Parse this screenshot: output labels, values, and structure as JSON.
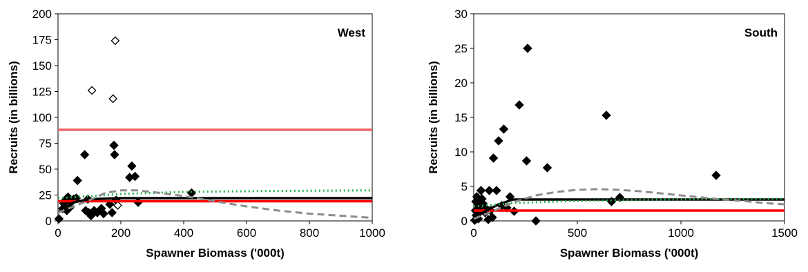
{
  "chart_data": [
    {
      "type": "scatter",
      "panel_label": "West",
      "xlabel": "Spawner Biomass ('000t)",
      "ylabel": "Recruits (in billions)",
      "xlim": [
        0,
        1000
      ],
      "ylim": [
        0,
        200
      ],
      "x_ticks": [
        "0",
        "200",
        "400",
        "600",
        "800",
        "1000"
      ],
      "y_ticks": [
        "0",
        "25",
        "50",
        "75",
        "100",
        "125",
        "150",
        "175",
        "200"
      ],
      "grid": false,
      "series": [
        {
          "marker": "filled-diamond",
          "color": "#000000",
          "points": [
            [
              3,
              2
            ],
            [
              15,
              12
            ],
            [
              18,
              17
            ],
            [
              22,
              14
            ],
            [
              25,
              21
            ],
            [
              28,
              10
            ],
            [
              32,
              23
            ],
            [
              38,
              13
            ],
            [
              42,
              18
            ],
            [
              50,
              21
            ],
            [
              58,
              22
            ],
            [
              62,
              39
            ],
            [
              85,
              64
            ],
            [
              88,
              10
            ],
            [
              95,
              21
            ],
            [
              98,
              8
            ],
            [
              105,
              5
            ],
            [
              115,
              10
            ],
            [
              125,
              8
            ],
            [
              138,
              12
            ],
            [
              145,
              7
            ],
            [
              165,
              16
            ],
            [
              172,
              8
            ],
            [
              178,
              73
            ],
            [
              180,
              64
            ],
            [
              185,
              20
            ],
            [
              228,
              42
            ],
            [
              235,
              53
            ],
            [
              245,
              43
            ],
            [
              255,
              18
            ],
            [
              425,
              27
            ]
          ]
        },
        {
          "marker": "open-diamond",
          "color": "#000000",
          "points": [
            [
              108,
              126
            ],
            [
              175,
              118
            ],
            [
              182,
              174
            ],
            [
              190,
              15
            ]
          ]
        },
        {
          "marker": "line",
          "color": "#f06464",
          "points": [
            [
              0,
              88
            ],
            [
              1000,
              88
            ]
          ]
        },
        {
          "marker": "line",
          "color": "#ff0000",
          "points": [
            [
              0,
              19
            ],
            [
              1000,
              19
            ]
          ]
        },
        {
          "marker": "line",
          "color": "#000000",
          "points": [
            [
              0,
              8
            ],
            [
              50,
              18
            ],
            [
              100,
              21
            ],
            [
              200,
              22
            ],
            [
              1000,
              22
            ]
          ]
        },
        {
          "marker": "dotted-line",
          "color": "#22b04b",
          "points": [
            [
              0,
              22
            ],
            [
              100,
              24
            ],
            [
              200,
              26
            ],
            [
              400,
              28
            ],
            [
              700,
              29
            ],
            [
              1000,
              29.5
            ]
          ]
        },
        {
          "marker": "dashed-line",
          "color": "#8c8c8c",
          "points": [
            [
              0,
              8
            ],
            [
              50,
              14
            ],
            [
              100,
              20
            ],
            [
              150,
              27
            ],
            [
              200,
              29.5
            ],
            [
              250,
              29.5
            ],
            [
              300,
              28
            ],
            [
              400,
              24
            ],
            [
              500,
              19
            ],
            [
              600,
              14
            ],
            [
              700,
              10
            ],
            [
              800,
              7
            ],
            [
              900,
              5
            ],
            [
              1000,
              3
            ]
          ]
        }
      ]
    },
    {
      "type": "scatter",
      "panel_label": "South",
      "xlabel": "Spawner Biomass ('000t)",
      "ylabel": "Recruits (in billions)",
      "xlim": [
        0,
        1500
      ],
      "ylim": [
        0,
        30
      ],
      "x_ticks": [
        "0",
        "500",
        "1000",
        "1500"
      ],
      "y_ticks": [
        "0",
        "5",
        "10",
        "15",
        "20",
        "25",
        "30"
      ],
      "grid": false,
      "series": [
        {
          "marker": "filled-diamond",
          "color": "#000000",
          "points": [
            [
              5,
              0.1
            ],
            [
              8,
              1.5
            ],
            [
              10,
              2.8
            ],
            [
              12,
              0.8
            ],
            [
              15,
              3.5
            ],
            [
              20,
              2.2
            ],
            [
              22,
              0.3
            ],
            [
              28,
              1.6
            ],
            [
              35,
              4.4
            ],
            [
              40,
              3.2
            ],
            [
              45,
              2.5
            ],
            [
              55,
              1.2
            ],
            [
              60,
              1.8
            ],
            [
              70,
              0.2
            ],
            [
              75,
              4.4
            ],
            [
              80,
              1.5
            ],
            [
              90,
              0.5
            ],
            [
              95,
              9.1
            ],
            [
              110,
              4.4
            ],
            [
              120,
              11.6
            ],
            [
              135,
              2.2
            ],
            [
              145,
              13.3
            ],
            [
              160,
              1.9
            ],
            [
              175,
              3.5
            ],
            [
              195,
              1.4
            ],
            [
              220,
              16.8
            ],
            [
              255,
              8.7
            ],
            [
              260,
              25
            ],
            [
              300,
              0
            ],
            [
              355,
              7.7
            ],
            [
              640,
              15.3
            ],
            [
              665,
              2.8
            ],
            [
              705,
              3.4
            ],
            [
              1170,
              6.6
            ]
          ]
        },
        {
          "marker": "line",
          "color": "#ff0000",
          "points": [
            [
              0,
              1.5
            ],
            [
              1500,
              1.5
            ]
          ]
        },
        {
          "marker": "line",
          "color": "#000000",
          "points": [
            [
              0,
              0.3
            ],
            [
              60,
              1.5
            ],
            [
              120,
              2.4
            ],
            [
              190,
              3.1
            ],
            [
              1500,
              3.1
            ]
          ]
        },
        {
          "marker": "dotted-line",
          "color": "#22b04b",
          "points": [
            [
              0,
              2.1
            ],
            [
              200,
              2.6
            ],
            [
              500,
              2.9
            ],
            [
              900,
              3.1
            ],
            [
              1500,
              3.2
            ]
          ]
        },
        {
          "marker": "dashed-line",
          "color": "#8c8c8c",
          "points": [
            [
              0,
              0.3
            ],
            [
              100,
              1.5
            ],
            [
              200,
              2.8
            ],
            [
              300,
              3.7
            ],
            [
              400,
              4.2
            ],
            [
              500,
              4.5
            ],
            [
              600,
              4.6
            ],
            [
              700,
              4.5
            ],
            [
              800,
              4.3
            ],
            [
              900,
              4.0
            ],
            [
              1000,
              3.7
            ],
            [
              1100,
              3.4
            ],
            [
              1200,
              3.1
            ],
            [
              1300,
              2.9
            ],
            [
              1400,
              2.6
            ],
            [
              1500,
              2.4
            ]
          ]
        }
      ]
    }
  ]
}
